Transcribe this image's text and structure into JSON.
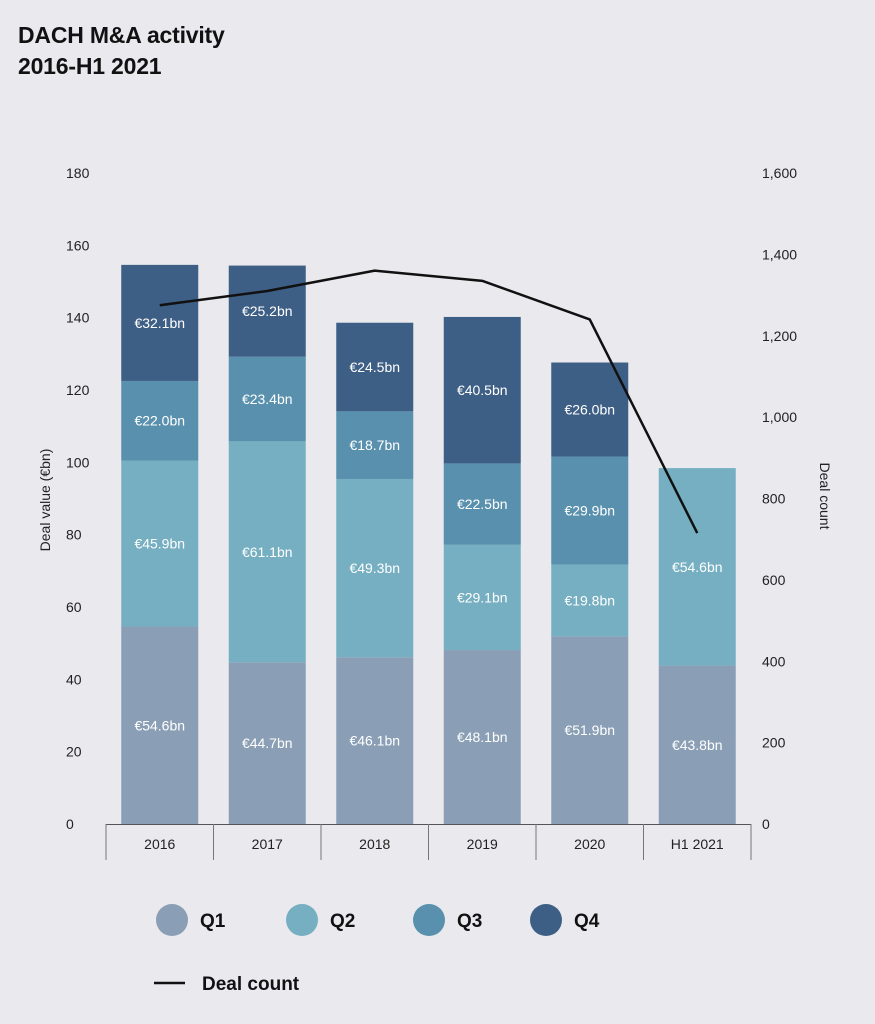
{
  "title_line1": "DACH M&A activity",
  "title_line2": "2016-H1 2021",
  "chart_data": {
    "type": "bar",
    "stacked": true,
    "categories": [
      "2016",
      "2017",
      "2018",
      "2019",
      "2020",
      "H1 2021"
    ],
    "series": [
      {
        "name": "Q1",
        "color": "#8a9fb5",
        "values": [
          54.6,
          44.7,
          46.1,
          48.1,
          51.9,
          43.8
        ],
        "labels": [
          "€54.6bn",
          "€44.7bn",
          "€46.1bn",
          "€48.1bn",
          "€51.9bn",
          "€43.8bn"
        ]
      },
      {
        "name": "Q2",
        "color": "#75afc1",
        "values": [
          45.9,
          61.1,
          49.3,
          29.1,
          19.8,
          54.6
        ],
        "labels": [
          "€45.9bn",
          "€61.1bn",
          "€49.3bn",
          "€29.1bn",
          "€19.8bn",
          "€54.6bn"
        ]
      },
      {
        "name": "Q3",
        "color": "#5890ad",
        "values": [
          22.0,
          23.4,
          18.7,
          22.5,
          29.9,
          null
        ],
        "labels": [
          "€22.0bn",
          "€23.4bn",
          "€18.7bn",
          "€22.5bn",
          "€29.9bn",
          ""
        ]
      },
      {
        "name": "Q4",
        "color": "#3e5f85",
        "values": [
          32.1,
          25.2,
          24.5,
          40.5,
          26.0,
          null
        ],
        "labels": [
          "€32.1bn",
          "€25.2bn",
          "€24.5bn",
          "€40.5bn",
          "€26.0bn",
          ""
        ]
      }
    ],
    "line_series": {
      "name": "Deal count",
      "color": "#111111",
      "axis": "right",
      "values": [
        1275,
        1310,
        1360,
        1335,
        1240,
        715
      ]
    },
    "ylabel": "Deal value (€bn)",
    "y2label": "Deal count",
    "ylim": [
      0,
      180
    ],
    "y2lim": [
      0,
      1600
    ],
    "yticks": [
      "0",
      "20",
      "40",
      "60",
      "80",
      "100",
      "120",
      "140",
      "160",
      "180"
    ],
    "y2ticks": [
      "0",
      "200",
      "400",
      "600",
      "800",
      "1,000",
      "1,200",
      "1,400",
      "1,600"
    ],
    "legend_position": "bottom",
    "grid": false
  }
}
